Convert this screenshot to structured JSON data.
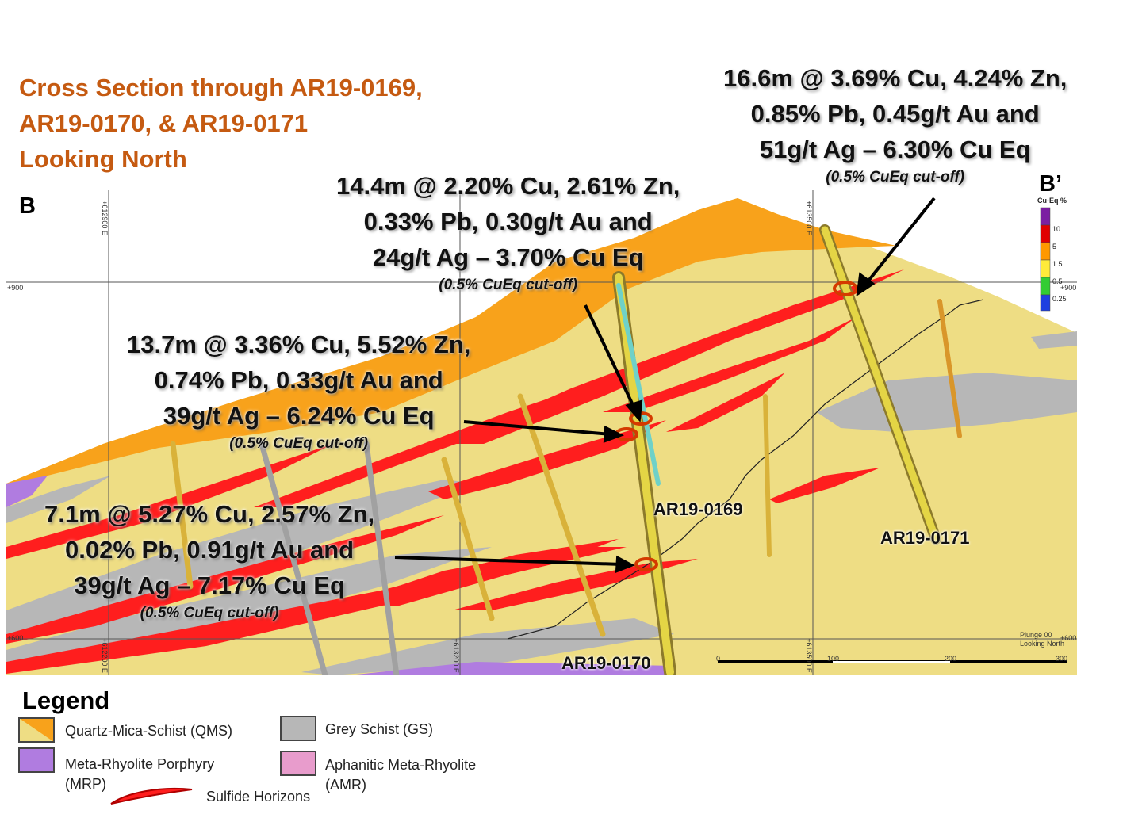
{
  "title": {
    "line1": "Cross Section through AR19-0169,",
    "line2": "AR19-0170, & AR19-0171",
    "line3": "Looking North"
  },
  "section_markers": {
    "left": "B",
    "right": "B’"
  },
  "callouts": [
    {
      "line1": "16.6m @ 3.69% Cu, 4.24% Zn,",
      "line2": "0.85% Pb, 0.45g/t Au and",
      "line3": "51g/t Ag – 6.30% Cu Eq",
      "cutoff": "(0.5% CuEq cut-off)"
    },
    {
      "line1": "14.4m @ 2.20% Cu, 2.61% Zn,",
      "line2": "0.33% Pb, 0.30g/t Au and",
      "line3": "24g/t Ag – 3.70% Cu Eq",
      "cutoff": "(0.5% CuEq cut-off)"
    },
    {
      "line1": "13.7m @ 3.36% Cu, 5.52% Zn,",
      "line2": "0.74% Pb, 0.33g/t Au and",
      "line3": "39g/t Ag – 6.24% Cu Eq",
      "cutoff": "(0.5% CuEq cut-off)"
    },
    {
      "line1": "7.1m @ 5.27% Cu, 2.57% Zn,",
      "line2": "0.02% Pb, 0.91g/t Au and",
      "line3": "39g/t Ag – 7.17% Cu Eq",
      "cutoff": "(0.5% CuEq cut-off)"
    }
  ],
  "holes": {
    "h169": "AR19-0169",
    "h170": "AR19-0170",
    "h171": "AR19-0171"
  },
  "grid_labels": {
    "elev_900_left": "+900",
    "elev_900_right": "+900",
    "elev_600_left": "+600",
    "elev_600_right": "+600",
    "e612900": "+612900 E",
    "e613200": "+613200 E",
    "e613500a": "+613500 E",
    "e613500b": "+613500 E",
    "e613200b": "+612200 E"
  },
  "cu_eq_scale": {
    "title": "Cu-Eq %",
    "ticks": [
      "10",
      "5",
      "1.5",
      "0.5",
      "0.25"
    ],
    "colors": [
      "#7b1fa2",
      "#e00000",
      "#ff9800",
      "#ffeb3b",
      "#33cc33",
      "#1e3fe0"
    ]
  },
  "scale_bar": {
    "ticks": [
      "0",
      "100",
      "200",
      "300"
    ],
    "plunge": "Plunge 00",
    "looking": "Looking North"
  },
  "legend": {
    "title": "Legend",
    "qms": "Quartz-Mica-Schist (QMS)",
    "gs": "Grey Schist (GS)",
    "mrp_line1": "Meta-Rhyolite Porphyry",
    "mrp_line2": "(MRP)",
    "amr_line1": "Aphanitic Meta-Rhyolite",
    "amr_line2": "(AMR)",
    "sulfide": "Sulfide Horizons"
  },
  "colors": {
    "qms_light": "#eedd84",
    "qms_orange": "#f8a21b",
    "grey_schist": "#b7b7b7",
    "mrp": "#b07ce0",
    "amr": "#e89ccc",
    "sulfide": "#ff1e1e",
    "title": "#c55a11"
  }
}
